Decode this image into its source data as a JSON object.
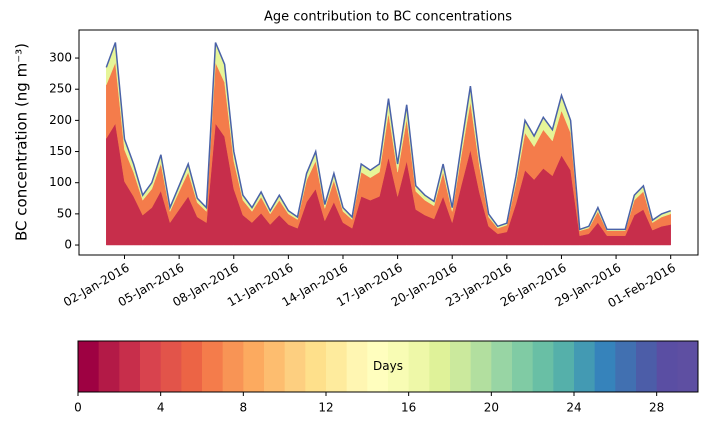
{
  "chart_data": [
    {
      "type": "stacked_area",
      "title": "Age contribution to BC concentrations",
      "y_label": "BC concentration (ng m⁻³)",
      "x": [
        "2016-01-01T00",
        "2016-01-01T12",
        "2016-01-02T00",
        "2016-01-02T12",
        "2016-01-03T00",
        "2016-01-03T12",
        "2016-01-04T00",
        "2016-01-04T12",
        "2016-01-05T00",
        "2016-01-05T12",
        "2016-01-06T00",
        "2016-01-06T12",
        "2016-01-07T00",
        "2016-01-07T12",
        "2016-01-08T00",
        "2016-01-08T12",
        "2016-01-09T00",
        "2016-01-09T12",
        "2016-01-10T00",
        "2016-01-10T12",
        "2016-01-11T00",
        "2016-01-11T12",
        "2016-01-12T00",
        "2016-01-12T12",
        "2016-01-13T00",
        "2016-01-13T12",
        "2016-01-14T00",
        "2016-01-14T12",
        "2016-01-15T00",
        "2016-01-15T12",
        "2016-01-16T00",
        "2016-01-16T12",
        "2016-01-17T00",
        "2016-01-17T12",
        "2016-01-18T00",
        "2016-01-18T12",
        "2016-01-19T00",
        "2016-01-19T12",
        "2016-01-20T00",
        "2016-01-20T12",
        "2016-01-21T00",
        "2016-01-21T12",
        "2016-01-22T00",
        "2016-01-22T12",
        "2016-01-23T00",
        "2016-01-23T12",
        "2016-01-24T00",
        "2016-01-24T12",
        "2016-01-25T00",
        "2016-01-25T12",
        "2016-01-26T00",
        "2016-01-26T12",
        "2016-01-27T00",
        "2016-01-27T12",
        "2016-01-28T00",
        "2016-01-28T12",
        "2016-01-29T00",
        "2016-01-29T12",
        "2016-01-30T00",
        "2016-01-30T12",
        "2016-01-31T00",
        "2016-01-31T12",
        "2016-02-01T00"
      ],
      "series": [
        {
          "color": "#c72e4b",
          "values": [
            171,
            195,
            102,
            78,
            48,
            60,
            87,
            36,
            57,
            78,
            45,
            36,
            195,
            174,
            90,
            48,
            36,
            51,
            33,
            48,
            33,
            27,
            69,
            90,
            39,
            69,
            36,
            27,
            78,
            72,
            78,
            141,
            78,
            135,
            57,
            48,
            42,
            78,
            36,
            96,
            153,
            84,
            30,
            18,
            21,
            66,
            120,
            105,
            123,
            111,
            144,
            120,
            15,
            18,
            36,
            15,
            15,
            15,
            48,
            57,
            24,
            30,
            33
          ]
        },
        {
          "color": "#f47c4b",
          "values": [
            86,
            98,
            51,
            39,
            24,
            30,
            44,
            18,
            29,
            39,
            23,
            18,
            98,
            87,
            45,
            24,
            18,
            26,
            17,
            24,
            17,
            14,
            35,
            45,
            20,
            35,
            18,
            14,
            39,
            36,
            39,
            71,
            39,
            68,
            29,
            24,
            21,
            39,
            18,
            48,
            77,
            42,
            15,
            9,
            11,
            33,
            60,
            53,
            62,
            56,
            72,
            60,
            8,
            9,
            18,
            8,
            8,
            8,
            24,
            29,
            12,
            15,
            17
          ]
        },
        {
          "color": "#e6f598",
          "values": [
            28,
            32,
            17,
            13,
            8,
            10,
            14,
            6,
            9,
            13,
            7,
            6,
            32,
            29,
            15,
            8,
            6,
            8,
            5,
            8,
            5,
            4,
            11,
            15,
            6,
            11,
            6,
            4,
            13,
            12,
            13,
            23,
            13,
            22,
            9,
            8,
            7,
            13,
            6,
            16,
            25,
            14,
            5,
            3,
            3,
            11,
            20,
            17,
            20,
            18,
            24,
            20,
            2,
            3,
            6,
            2,
            2,
            2,
            8,
            9,
            4,
            5,
            5
          ]
        }
      ],
      "edge_color": "#4a62a8",
      "xlim": [
        "2015-12-30T12",
        "2016-02-02T12"
      ],
      "xticks": [
        {
          "value": "2016-01-02T00",
          "label": "02-Jan-2016"
        },
        {
          "value": "2016-01-05T00",
          "label": "05-Jan-2016"
        },
        {
          "value": "2016-01-08T00",
          "label": "08-Jan-2016"
        },
        {
          "value": "2016-01-11T00",
          "label": "11-Jan-2016"
        },
        {
          "value": "2016-01-14T00",
          "label": "14-Jan-2016"
        },
        {
          "value": "2016-01-17T00",
          "label": "17-Jan-2016"
        },
        {
          "value": "2016-01-20T00",
          "label": "20-Jan-2016"
        },
        {
          "value": "2016-01-23T00",
          "label": "23-Jan-2016"
        },
        {
          "value": "2016-01-26T00",
          "label": "26-Jan-2016"
        },
        {
          "value": "2016-01-29T00",
          "label": "29-Jan-2016"
        },
        {
          "value": "2016-02-01T00",
          "label": "01-Feb-2016"
        }
      ],
      "ylim": [
        -16,
        345
      ],
      "yticks": [
        0,
        50,
        100,
        150,
        200,
        250,
        300
      ],
      "grid": false
    },
    {
      "type": "colorbar",
      "label": "Days",
      "xlim": [
        0,
        30
      ],
      "xticks": [
        0,
        4,
        8,
        12,
        16,
        20,
        24,
        28
      ],
      "colors": [
        "#9e0142",
        "#b31a47",
        "#c72e4b",
        "#d8434e",
        "#e2544a",
        "#ec6445",
        "#f47c4b",
        "#f89455",
        "#fcaa5f",
        "#fdbd6f",
        "#fdcf80",
        "#fee08b",
        "#feeb9d",
        "#fff6b2",
        "#fffebe",
        "#f8fcb4",
        "#eef8a8",
        "#dff299",
        "#cbe99d",
        "#b2df9f",
        "#98d5a4",
        "#80cba4",
        "#69bfa5",
        "#55b0aa",
        "#439ab3",
        "#3683bb",
        "#4170b1",
        "#4c5da8",
        "#5a4ea3",
        "#5e4fa2"
      ]
    }
  ]
}
